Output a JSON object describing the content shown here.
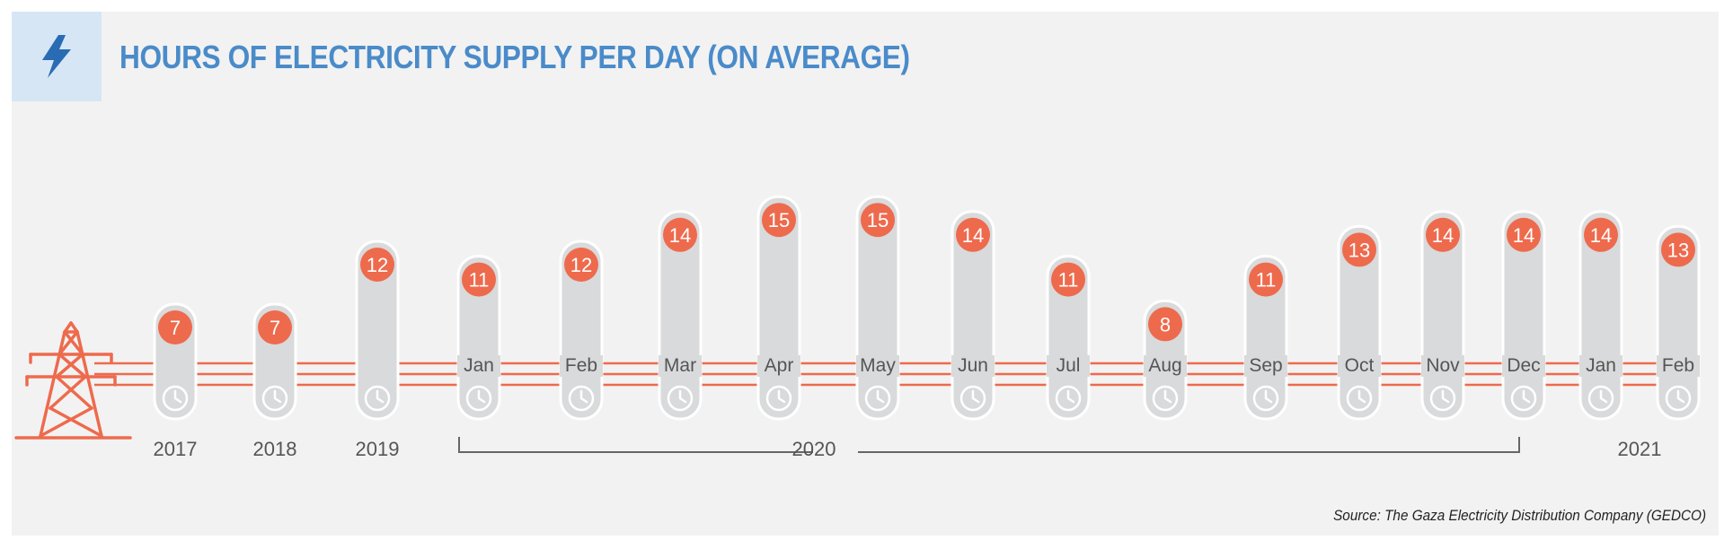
{
  "header": {
    "title": "HOURS OF ELECTRICITY SUPPLY PER DAY (ON AVERAGE)",
    "icon": "lightning-bolt-icon"
  },
  "source": "Source: The Gaza Electricity Distribution Company (GEDCO)",
  "colors": {
    "accent": "#4a8bc9",
    "badge": "#ee6a4d",
    "bar": "#d9dadb",
    "line": "#ee6a4d",
    "text": "#555555",
    "panel": "#f2f2f2"
  },
  "chart_data": {
    "type": "bar",
    "title": "HOURS OF ELECTRICITY SUPPLY PER DAY (ON AVERAGE)",
    "categories": [
      "2017",
      "2018",
      "2019",
      "Jan",
      "Feb",
      "Mar",
      "Apr",
      "May",
      "Jun",
      "Jul",
      "Aug",
      "Sep",
      "Oct",
      "Nov",
      "Dec",
      "Jan",
      "Feb"
    ],
    "values": [
      7,
      7,
      12,
      11,
      12,
      14,
      15,
      15,
      14,
      11,
      8,
      11,
      13,
      14,
      14,
      14,
      13
    ],
    "year_labels": [
      "2017",
      "2018",
      "2019",
      "2020",
      "2021"
    ],
    "groups": [
      {
        "label": "2020",
        "from": 3,
        "to": 14
      },
      {
        "label": "2021",
        "from": 15,
        "to": 16
      }
    ],
    "xlabel": "",
    "ylabel": "",
    "grid": false,
    "legend": "none"
  }
}
